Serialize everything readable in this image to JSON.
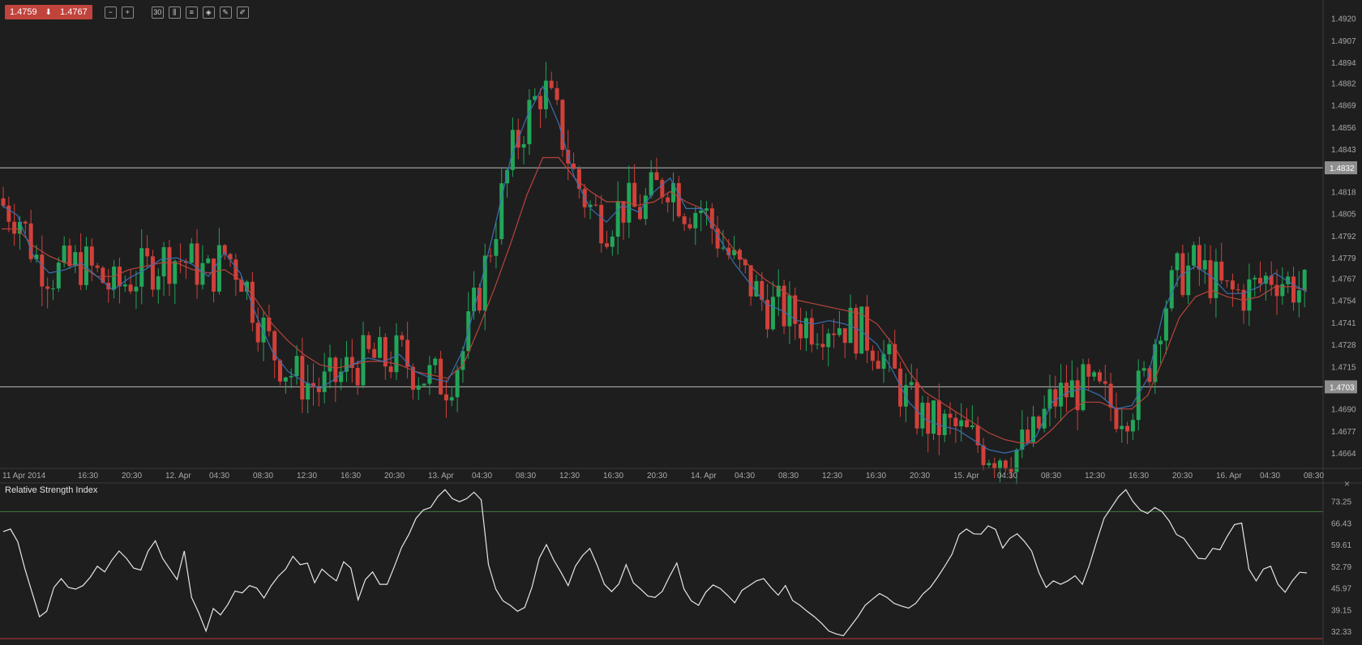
{
  "toolbar": {
    "bid": "1.4759",
    "ask": "1.4767",
    "direction_icon": "arrow-down-icon",
    "buttons": [
      {
        "name": "zoom-out-button",
        "icon": "zoom-out-icon",
        "glyph": "−"
      },
      {
        "name": "zoom-in-button",
        "icon": "zoom-in-icon",
        "glyph": "+"
      },
      {
        "name": "timeframe-button",
        "icon": "timeframe-icon",
        "glyph": "30"
      },
      {
        "name": "chart-type-button",
        "icon": "candles-icon",
        "glyph": "⫼"
      },
      {
        "name": "indicators-button",
        "icon": "list-icon",
        "glyph": "≡"
      },
      {
        "name": "objects-button",
        "icon": "objects-icon",
        "glyph": "◈"
      },
      {
        "name": "draw-button",
        "icon": "draw-icon",
        "glyph": "✎"
      },
      {
        "name": "edit-button",
        "icon": "pencil-icon",
        "glyph": "✐"
      }
    ]
  },
  "colors": {
    "background": "#1e1e1e",
    "bull": "#22a559",
    "bear": "#d2403a",
    "fast_ma": "#3a6fb0",
    "slow_ma": "#b8443c",
    "level_line": "#bdbdbd",
    "rsi_line": "#e6e6e6",
    "rsi_upper": "#3f7a3f",
    "rsi_lower": "#b83a3a",
    "axis_text": "#a8a8a8"
  },
  "price_axis": {
    "labels": [
      "1.4920",
      "1.4907",
      "1.4894",
      "1.4882",
      "1.4869",
      "1.4856",
      "1.4843",
      "1.4818",
      "1.4805",
      "1.4792",
      "1.4779",
      "1.4767",
      "1.4754",
      "1.4741",
      "1.4728",
      "1.4715",
      "1.4690",
      "1.4677",
      "1.4664"
    ]
  },
  "time_axis": {
    "labels": [
      "11 Apr 2014",
      "16:30",
      "20:30",
      "12. Apr",
      "04:30",
      "08:30",
      "12:30",
      "16:30",
      "20:30",
      "13. Apr",
      "04:30",
      "08:30",
      "12:30",
      "16:30",
      "20:30",
      "14. Apr",
      "04:30",
      "08:30",
      "12:30",
      "16:30",
      "20:30",
      "15. Apr",
      "04:30",
      "08:30",
      "12:30",
      "16:30",
      "20:30",
      "16. Apr",
      "04:30",
      "08:30"
    ]
  },
  "rsi": {
    "title": "Relative Strength Index",
    "axis_labels": [
      "73.25",
      "66.43",
      "59.61",
      "52.79",
      "45.97",
      "39.15",
      "32.33"
    ],
    "close_icon": "close-icon",
    "close_glyph": "×"
  },
  "chart_data": [
    {
      "type": "candlestick",
      "title": "",
      "ylim": [
        1.4655,
        1.4927
      ],
      "horizontal_levels": [
        "1.4832",
        "1.4703"
      ],
      "fast_ma": [
        1.481,
        1.4804,
        1.478,
        1.477,
        1.4772,
        1.4776,
        1.4768,
        1.476,
        1.4767,
        1.4772,
        1.4778,
        1.4779,
        1.4775,
        1.4768,
        1.4782,
        1.477,
        1.4745,
        1.4724,
        1.4712,
        1.4706,
        1.4702,
        1.4708,
        1.4716,
        1.472,
        1.4718,
        1.4722,
        1.4712,
        1.4708,
        1.4706,
        1.4725,
        1.476,
        1.4798,
        1.4838,
        1.4862,
        1.488,
        1.4858,
        1.4826,
        1.4808,
        1.48,
        1.481,
        1.4806,
        1.4818,
        1.4826,
        1.4808,
        1.4808,
        1.4792,
        1.4776,
        1.4764,
        1.4752,
        1.4748,
        1.4742,
        1.474,
        1.4742,
        1.474,
        1.4736,
        1.4728,
        1.4712,
        1.4694,
        1.4684,
        1.468,
        1.4678,
        1.4672,
        1.4666,
        1.4664,
        1.4666,
        1.4674,
        1.4694,
        1.47,
        1.4702,
        1.4698,
        1.469,
        1.4692,
        1.4708,
        1.4748,
        1.4768,
        1.4774,
        1.4768,
        1.4758,
        1.4758,
        1.4762,
        1.477,
        1.4764,
        1.4759
      ],
      "slow_ma": [
        1.4796,
        1.4796,
        1.4786,
        1.478,
        1.4776,
        1.4774,
        1.4768,
        1.4768,
        1.4772,
        1.4774,
        1.4776,
        1.4776,
        1.4772,
        1.477,
        1.4772,
        1.4766,
        1.4754,
        1.474,
        1.473,
        1.4722,
        1.4716,
        1.4714,
        1.4716,
        1.4718,
        1.4718,
        1.4716,
        1.4712,
        1.471,
        1.4708,
        1.4716,
        1.4738,
        1.4762,
        1.4788,
        1.4816,
        1.4838,
        1.4838,
        1.4826,
        1.4818,
        1.4812,
        1.4812,
        1.481,
        1.4812,
        1.4818,
        1.4812,
        1.4808,
        1.4796,
        1.4784,
        1.4774,
        1.4766,
        1.476,
        1.4754,
        1.4752,
        1.475,
        1.4748,
        1.4746,
        1.474,
        1.4728,
        1.4712,
        1.47,
        1.4694,
        1.4688,
        1.4682,
        1.4676,
        1.4672,
        1.467,
        1.467,
        1.4678,
        1.4688,
        1.4694,
        1.4694,
        1.469,
        1.469,
        1.4698,
        1.472,
        1.4744,
        1.4756,
        1.476,
        1.4756,
        1.4754,
        1.4756,
        1.4762,
        1.4762,
        1.476
      ]
    },
    {
      "type": "line",
      "title": "Relative Strength Index",
      "ylim": [
        28,
        78
      ],
      "levels": [
        70,
        30
      ],
      "values": [
        63.7,
        64.5,
        60.5,
        51.9,
        44.4,
        36.9,
        38.6,
        46.1,
        48.9,
        46.1,
        45.6,
        46.7,
        49.3,
        52.8,
        51.0,
        54.7,
        57.6,
        55.3,
        52.2,
        51.6,
        57.6,
        60.8,
        55.3,
        51.9,
        48.6,
        57.6,
        43.0,
        38.1,
        32.4,
        39.5,
        37.5,
        40.7,
        45.0,
        44.4,
        46.7,
        45.9,
        42.8,
        46.7,
        49.7,
        51.9,
        55.9,
        53.3,
        53.8,
        47.6,
        51.9,
        49.9,
        48.2,
        54.2,
        52.2,
        42.2,
        48.6,
        51.0,
        47.1,
        47.1,
        52.7,
        58.7,
        62.8,
        67.9,
        70.5,
        71.3,
        74.7,
        76.9,
        74.1,
        73.1,
        74.1,
        76.1,
        73.7,
        53.3,
        45.6,
        41.9,
        40.5,
        38.6,
        39.8,
        46.1,
        55.3,
        59.6,
        54.8,
        50.9,
        46.7,
        52.8,
        56.2,
        58.4,
        53.2,
        47.1,
        44.8,
        47.2,
        53.3,
        47.6,
        45.6,
        43.4,
        43.0,
        44.9,
        49.6,
        53.8,
        45.6,
        41.9,
        40.5,
        44.6,
        46.9,
        45.8,
        43.7,
        41.3,
        45.2,
        46.7,
        48.2,
        48.9,
        46.1,
        43.7,
        46.7,
        42.0,
        40.5,
        38.6,
        36.9,
        34.8,
        32.4,
        31.5,
        30.9,
        33.9,
        36.9,
        40.5,
        42.4,
        44.2,
        43.0,
        41.1,
        40.3,
        39.6,
        41.1,
        44.1,
        46.1,
        49.3,
        52.8,
        56.6,
        62.8,
        64.5,
        63.0,
        62.9,
        65.5,
        64.4,
        58.5,
        61.6,
        63.0,
        60.6,
        57.6,
        50.8,
        46.1,
        48.2,
        47.1,
        48.2,
        49.8,
        47.1,
        53.3,
        60.8,
        67.9,
        71.3,
        74.7,
        76.9,
        73.1,
        70.5,
        69.4,
        71.3,
        70.0,
        67.0,
        62.8,
        61.6,
        58.4,
        55.3,
        55.1,
        58.4,
        58.0,
        62.2,
        65.9,
        66.4,
        51.9,
        48.2,
        51.9,
        52.8,
        47.1,
        44.6,
        48.2,
        50.9,
        50.7
      ]
    }
  ]
}
